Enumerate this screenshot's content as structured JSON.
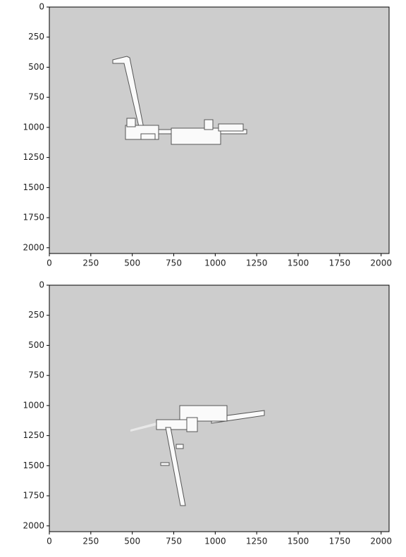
{
  "chart_data": [
    {
      "type": "image",
      "xlim": [
        0,
        2048
      ],
      "ylim": [
        2048,
        0
      ],
      "xticks": [
        0,
        250,
        500,
        750,
        1000,
        1250,
        1500,
        1750,
        2000
      ],
      "yticks": [
        0,
        250,
        500,
        750,
        1000,
        1250,
        1500,
        1750,
        2000
      ],
      "background": "#cdcdcd"
    },
    {
      "type": "image",
      "xlim": [
        0,
        2048
      ],
      "ylim": [
        2048,
        0
      ],
      "xticks": [
        0,
        250,
        500,
        750,
        1000,
        1250,
        1500,
        1750,
        2000
      ],
      "yticks": [
        0,
        250,
        500,
        750,
        1000,
        1250,
        1500,
        1750,
        2000
      ],
      "background": "#cdcdcd"
    }
  ]
}
